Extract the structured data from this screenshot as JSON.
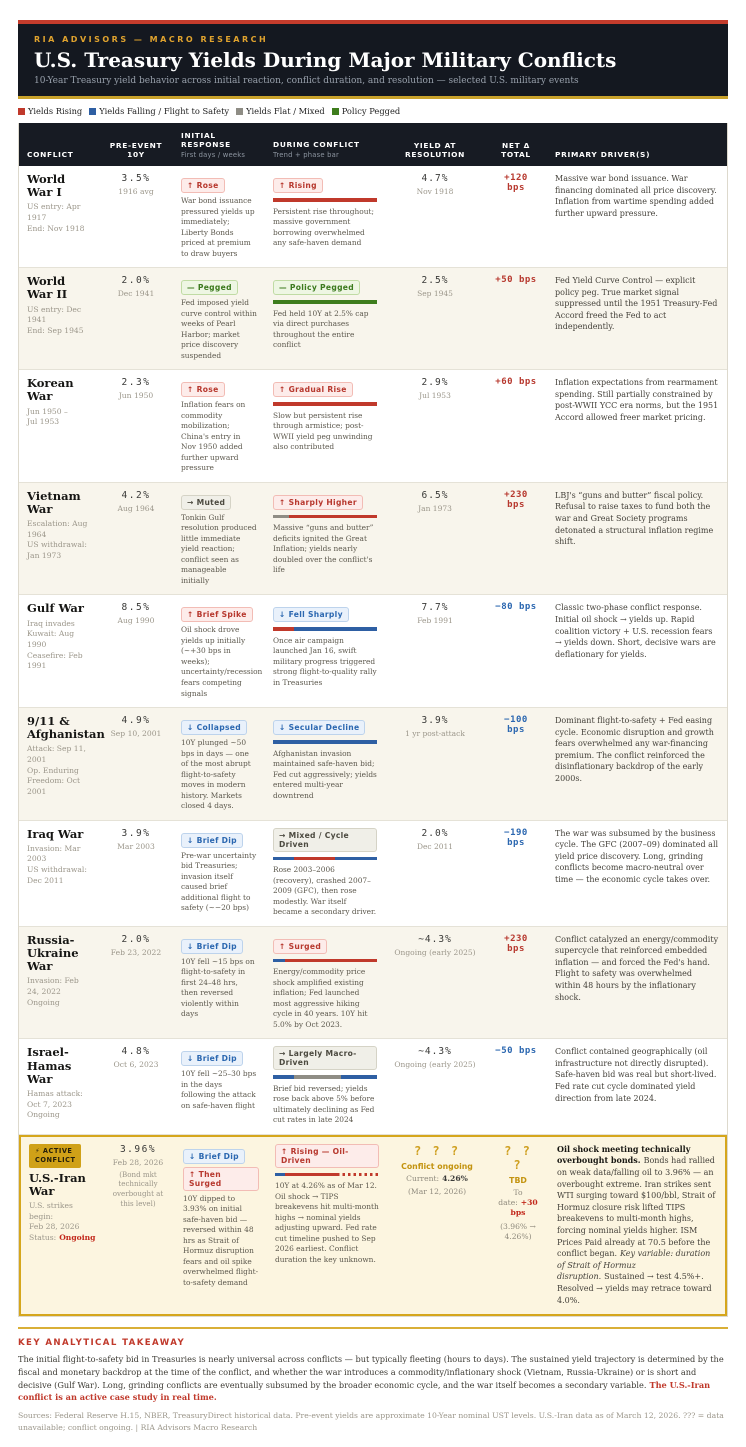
{
  "header": {
    "kicker": "RIA ADVISORS — MACRO RESEARCH",
    "title": "U.S. Treasury Yields During Major Military Conflicts",
    "subtitle": "10-Year Treasury yield behavior across initial reaction, conflict duration, and resolution — selected U.S. military events"
  },
  "palette": {
    "rising_red": "#c0392b",
    "falling_blue": "#2e5fa3",
    "flat_gray": "#8f8d85",
    "pegged_green": "#3e7d1d",
    "gold_accent": "#d5a61c",
    "header_bg": "#141820"
  },
  "legend": {
    "items": [
      {
        "label": "Yields Rising",
        "color": "#c0392b"
      },
      {
        "label": "Yields Falling / Flight to Safety",
        "color": "#2e5fa3"
      },
      {
        "label": "Yields Flat / Mixed",
        "color": "#8f8d85"
      },
      {
        "label": "Policy Pegged",
        "color": "#3e7d1d"
      }
    ]
  },
  "columns": [
    {
      "label": "CONFLICT",
      "sub": ""
    },
    {
      "label": "PRE-EVENT 10Y",
      "sub": ""
    },
    {
      "label": "INITIAL RESPONSE",
      "sub": "First days / weeks"
    },
    {
      "label": "DURING CONFLICT",
      "sub": "Trend + phase bar"
    },
    {
      "label": "YIELD AT RESOLUTION",
      "sub": ""
    },
    {
      "label": "NET Δ TOTAL",
      "sub": ""
    },
    {
      "label": "PRIMARY DRIVER(S)",
      "sub": ""
    }
  ],
  "rows": [
    {
      "name": "World War I",
      "dates": [
        "US entry: Apr 1917",
        "End: Nov 1918"
      ],
      "pre": {
        "value": "3.5%",
        "date": "1916 avg"
      },
      "initial": {
        "badges": [
          {
            "label": "↑ Rose",
            "type": "red"
          }
        ],
        "text": "War bond issuance pressured yields up immediately; Liberty Bonds priced at premium to draw buyers"
      },
      "during": {
        "badge": {
          "label": "↑ Rising",
          "type": "red"
        },
        "bar": [
          {
            "color": "#c0392b",
            "pct": 100
          }
        ],
        "text": "Persistent rise throughout; massive government borrowing overwhelmed any safe-haven demand"
      },
      "resolution": {
        "value": "4.7%",
        "date": "Nov 1918"
      },
      "net": {
        "value": "+120 bps",
        "type": "up"
      },
      "driver": {
        "text": "Massive war bond issuance. War financing dominated all price discovery. Inflation from wartime spending added further upward pressure."
      }
    },
    {
      "name": "World War II",
      "dates": [
        "US entry: Dec 1941",
        "End: Sep 1945"
      ],
      "pre": {
        "value": "2.0%",
        "date": "Dec 1941"
      },
      "initial": {
        "badges": [
          {
            "label": "— Pegged",
            "type": "green"
          }
        ],
        "text": "Fed imposed yield curve control within weeks of Pearl Harbor; market price discovery suspended"
      },
      "during": {
        "badge": {
          "label": "— Policy Pegged",
          "type": "green"
        },
        "bar": [
          {
            "color": "#3e7d1d",
            "pct": 100
          }
        ],
        "text": "Fed held 10Y at 2.5% cap via direct purchases throughout the entire conflict"
      },
      "resolution": {
        "value": "2.5%",
        "date": "Sep 1945"
      },
      "net": {
        "value": "+50 bps",
        "type": "up"
      },
      "driver": {
        "text": "Fed Yield Curve Control — explicit policy peg. True market signal suppressed until the 1951 Treasury-Fed Accord freed the Fed to act independently."
      }
    },
    {
      "name": "Korean War",
      "dates": [
        "Jun 1950 –",
        "Jul 1953"
      ],
      "pre": {
        "value": "2.3%",
        "date": "Jun 1950"
      },
      "initial": {
        "badges": [
          {
            "label": "↑ Rose",
            "type": "red"
          }
        ],
        "text": "Inflation fears on commodity mobilization; China's entry in Nov 1950 added further upward pressure"
      },
      "during": {
        "badge": {
          "label": "↑ Gradual Rise",
          "type": "red"
        },
        "bar": [
          {
            "color": "#c0392b",
            "pct": 100
          }
        ],
        "text": "Slow but persistent rise through armistice; post-WWII yield peg unwinding also contributed"
      },
      "resolution": {
        "value": "2.9%",
        "date": "Jul 1953"
      },
      "net": {
        "value": "+60 bps",
        "type": "up"
      },
      "driver": {
        "text": "Inflation expectations from rearmament spending. Still partially constrained by post-WWII YCC era norms, but the 1951 Accord allowed freer market pricing."
      }
    },
    {
      "name": "Vietnam War",
      "dates": [
        "Escalation: Aug 1964",
        "US withdrawal: Jan 1973"
      ],
      "pre": {
        "value": "4.2%",
        "date": "Aug 1964"
      },
      "initial": {
        "badges": [
          {
            "label": "→ Muted",
            "type": "gray"
          }
        ],
        "text": "Tonkin Gulf resolution produced little immediate yield reaction; conflict seen as manageable initially"
      },
      "during": {
        "badge": {
          "label": "↑ Sharply Higher",
          "type": "red"
        },
        "bar": [
          {
            "color": "#8f8d85",
            "pct": 15
          },
          {
            "color": "#c0392b",
            "pct": 85
          }
        ],
        "text": "Massive “guns and butter” deficits ignited the Great Inflation; yields nearly doubled over the conflict's life"
      },
      "resolution": {
        "value": "6.5%",
        "date": "Jan 1973"
      },
      "net": {
        "value": "+230 bps",
        "type": "up"
      },
      "driver": {
        "text": "LBJ's “guns and butter” fiscal policy. Refusal to raise taxes to fund both the war and Great Society programs detonated a structural inflation regime shift."
      }
    },
    {
      "name": "Gulf War",
      "dates": [
        "Iraq invades Kuwait: Aug 1990",
        "Ceasefire: Feb 1991"
      ],
      "pre": {
        "value": "8.5%",
        "date": "Aug 1990"
      },
      "initial": {
        "badges": [
          {
            "label": "↑ Brief Spike",
            "type": "red"
          }
        ],
        "text": "Oil shock drove yields up initially (~+30 bps in weeks); uncertainty/recession fears competing signals"
      },
      "during": {
        "badge": {
          "label": "↓ Fell Sharply",
          "type": "blue"
        },
        "bar": [
          {
            "color": "#c0392b",
            "pct": 20
          },
          {
            "color": "#2e5fa3",
            "pct": 80
          }
        ],
        "text": "Once air campaign launched Jan 16, swift military progress triggered strong flight-to-quality rally in Treasuries"
      },
      "resolution": {
        "value": "7.7%",
        "date": "Feb 1991"
      },
      "net": {
        "value": "−80 bps",
        "type": "down"
      },
      "driver": {
        "text": "Classic two-phase conflict response. Initial oil shock → yields up. Rapid coalition victory + U.S. recession fears → yields down. Short, decisive wars are deflationary for yields."
      }
    },
    {
      "name": "9/11 & Afghanistan",
      "dates": [
        "Attack: Sep 11, 2001",
        "Op. Enduring Freedom: Oct 2001"
      ],
      "pre": {
        "value": "4.9%",
        "date": "Sep 10, 2001"
      },
      "initial": {
        "badges": [
          {
            "label": "↓ Collapsed",
            "type": "blue"
          }
        ],
        "text": "10Y plunged ~50 bps in days — one of the most abrupt flight-to-safety moves in modern history. Markets closed 4 days."
      },
      "during": {
        "badge": {
          "label": "↓ Secular Decline",
          "type": "blue"
        },
        "bar": [
          {
            "color": "#2e5fa3",
            "pct": 100
          }
        ],
        "text": "Afghanistan invasion maintained safe-haven bid; Fed cut aggressively; yields entered multi-year downtrend"
      },
      "resolution": {
        "value": "3.9%",
        "date": "1 yr post-attack"
      },
      "net": {
        "value": "−100 bps",
        "type": "down"
      },
      "driver": {
        "text": "Dominant flight-to-safety + Fed easing cycle. Economic disruption and growth fears overwhelmed any war-financing premium. The conflict reinforced the disinflationary backdrop of the early 2000s."
      }
    },
    {
      "name": "Iraq War",
      "dates": [
        "Invasion: Mar 2003",
        "US withdrawal: Dec 2011"
      ],
      "pre": {
        "value": "3.9%",
        "date": "Mar 2003"
      },
      "initial": {
        "badges": [
          {
            "label": "↓ Brief Dip",
            "type": "blue"
          }
        ],
        "text": "Pre-war uncertainty bid Treasuries; invasion itself caused brief additional flight to safety (~−20 bps)"
      },
      "during": {
        "badge": {
          "label": "→ Mixed / Cycle Driven",
          "type": "gray"
        },
        "bar": [
          {
            "color": "#2e5fa3",
            "pct": 20
          },
          {
            "color": "#c0392b",
            "pct": 40
          },
          {
            "color": "#2e5fa3",
            "pct": 40
          }
        ],
        "text": "Rose 2003–2006 (recovery), crashed 2007–2009 (GFC), then rose modestly. War itself became a secondary driver."
      },
      "resolution": {
        "value": "2.0%",
        "date": "Dec 2011"
      },
      "net": {
        "value": "−190 bps",
        "type": "down"
      },
      "driver": {
        "text": "The war was subsumed by the business cycle. The GFC (2007–09) dominated all yield price discovery. Long, grinding conflicts become macro-neutral over time — the economic cycle takes over."
      }
    },
    {
      "name": "Russia-Ukraine War",
      "dates": [
        "Invasion: Feb 24, 2022",
        "Ongoing"
      ],
      "pre": {
        "value": "2.0%",
        "date": "Feb 23, 2022"
      },
      "initial": {
        "badges": [
          {
            "label": "↓ Brief Dip",
            "type": "blue"
          }
        ],
        "text": "10Y fell ~15 bps on flight-to-safety in first 24–48 hrs, then reversed violently within days"
      },
      "during": {
        "badge": {
          "label": "↑ Surged",
          "type": "red"
        },
        "bar": [
          {
            "color": "#2e5fa3",
            "pct": 12
          },
          {
            "color": "#c0392b",
            "pct": 88
          }
        ],
        "text": "Energy/commodity price shock amplified existing inflation; Fed launched most aggressive hiking cycle in 40 years. 10Y hit 5.0% by Oct 2023."
      },
      "resolution": {
        "value": "~4.3%",
        "date": "Ongoing (early 2025)"
      },
      "net": {
        "value": "+230 bps",
        "type": "up"
      },
      "driver": {
        "text": "Conflict catalyzed an energy/commodity supercycle that reinforced embedded inflation — and forced the Fed's hand. Flight to safety was overwhelmed within 48 hours by the inflationary shock."
      }
    },
    {
      "name": "Israel-Hamas War",
      "dates": [
        "Hamas attack: Oct 7, 2023",
        "Ongoing"
      ],
      "pre": {
        "value": "4.8%",
        "date": "Oct 6, 2023"
      },
      "initial": {
        "badges": [
          {
            "label": "↓ Brief Dip",
            "type": "blue"
          }
        ],
        "text": "10Y fell ~25–30 bps in the days following the attack on safe-haven flight"
      },
      "during": {
        "badge": {
          "label": "→ Largely Macro-Driven",
          "type": "gray"
        },
        "bar": [
          {
            "color": "#2e5fa3",
            "pct": 20
          },
          {
            "color": "#8f8d85",
            "pct": 45
          },
          {
            "color": "#2e5fa3",
            "pct": 35
          }
        ],
        "text": "Brief bid reversed; yields rose back above 5% before ultimately declining as Fed cut rates in late 2024"
      },
      "resolution": {
        "value": "~4.3%",
        "date": "Ongoing (early 2025)"
      },
      "net": {
        "value": "−50 bps",
        "type": "down"
      },
      "driver": {
        "text": "Conflict contained geographically (oil infrastructure not directly disrupted). Safe-haven bid was real but short-lived. Fed rate cut cycle dominated yield direction from late 2024."
      }
    },
    {
      "active": true,
      "badge_lines": [
        "⚡ ACTIVE",
        "CONFLICT"
      ],
      "name": "U.S.-Iran War",
      "dates": [
        "U.S. strikes begin:",
        "Feb 28, 2026"
      ],
      "status": {
        "label": "Status:",
        "value": "Ongoing"
      },
      "pre": {
        "value": "3.96%",
        "date": "Feb 28, 2026",
        "note": "(Bond mkt technically overbought at this level)"
      },
      "initial": {
        "badges": [
          {
            "label": "↓ Brief Dip",
            "type": "blue"
          },
          {
            "label": "↑ Then Surged",
            "type": "red"
          }
        ],
        "text": "10Y dipped to 3.93% on initial safe-haven bid — reversed within 48 hrs as Strait of Hormuz disruption fears and oil spike overwhelmed flight-to-safety demand"
      },
      "during": {
        "badge": {
          "label": "↑ Rising — Oil-Driven",
          "type": "red"
        },
        "bar": [
          {
            "color": "#2e5fa3",
            "pct": 10
          },
          {
            "color": "#c0392b",
            "pct": 50
          },
          {
            "color": "#c0392b",
            "pct": 40,
            "style": "dotted"
          }
        ],
        "text": "10Y at 4.26% as of Mar 12. Oil shock → TIPS breakevens hit multi-month highs → nominal yields adjusting upward. Fed rate cut timeline pushed to Sep 2026 earliest. Conflict duration the key unknown."
      },
      "resolution": {
        "qmarks": "? ? ?",
        "status": "Conflict ongoing",
        "current_label": "Current:",
        "current_value": "4.26%",
        "current_date": "(Mar 12, 2026)"
      },
      "net": {
        "qmarks": "? ? ?",
        "tbd": "TBD",
        "todate_label": "To date:",
        "todate_value": "+30 bps",
        "range": "(3.96% → 4.26%)"
      },
      "driver": {
        "lead": "Oil shock meeting technically overbought bonds.",
        "text": "Bonds had rallied on weak data/falling oil to 3.96% — an overbought extreme. Iran strikes sent WTI surging toward $100/bbl, Strait of Hormuz closure risk lifted TIPS breakevens to multi-month highs, forcing nominal yields higher. ISM Prices Paid already at 70.5 before the conflict began.",
        "em": "Key variable: duration of Strait of Hormuz disruption.",
        "tail": "Sustained → test 4.5%+. Resolved → yields may retrace toward 4.0%."
      }
    }
  ],
  "footer": {
    "takeaway_title": "KEY ANALYTICAL TAKEAWAY",
    "takeaway_text": "The initial flight-to-safety bid in Treasuries is nearly universal across conflicts — but typically fleeting (hours to days). The sustained yield trajectory is determined by the fiscal and monetary backdrop at the time of the conflict, and whether the war introduces a commodity/inflationary shock (Vietnam, Russia-Ukraine) or is short and decisive (Gulf War). Long, grinding conflicts are eventually subsumed by the broader economic cycle, and the war itself becomes a secondary variable.",
    "takeaway_highlight": "The U.S.-Iran conflict is an active case study in real time.",
    "sources": "Sources: Federal Reserve H.15, NBER, TreasuryDirect historical data. Pre-event yields are approximate 10-Year nominal UST levels. U.S.-Iran data as of March 12, 2026. ??? = data unavailable; conflict ongoing. | RIA Advisors Macro Research"
  }
}
